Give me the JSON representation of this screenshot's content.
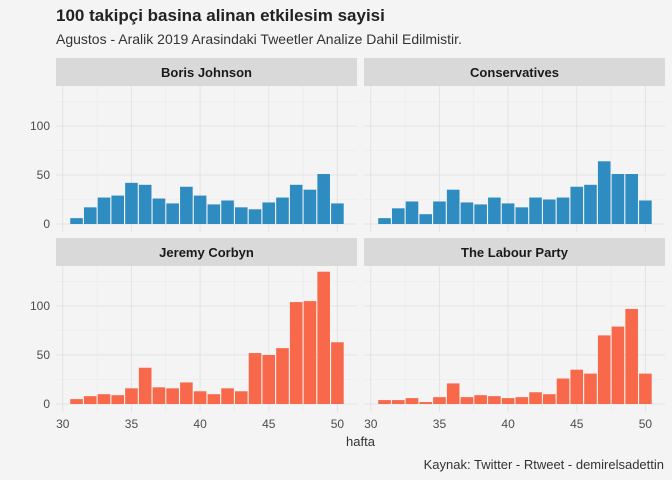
{
  "title": "100 takipçi basina alinan etkilesim sayisi",
  "subtitle": "Agustos - Aralik 2019 Arasindaki Tweetler Analize Dahil Edilmistir.",
  "caption": "Kaynak: Twitter - Rtweet - demirelsadettin",
  "colors": {
    "blue": "#2e8cc1",
    "red": "#f8684a"
  },
  "chart_data": {
    "type": "bar",
    "xlabel": "hafta",
    "ylabel": "",
    "xlim": [
      30,
      51
    ],
    "ylim": [
      0,
      140
    ],
    "x_ticks": [
      30,
      35,
      40,
      45,
      50
    ],
    "y_ticks": [
      0,
      50,
      100
    ],
    "grid": true,
    "panels": [
      {
        "name": "Boris Johnson",
        "color": "blue",
        "x": [
          31,
          32,
          33,
          34,
          35,
          36,
          37,
          38,
          39,
          40,
          41,
          42,
          43,
          44,
          45,
          46,
          47,
          48,
          49,
          50
        ],
        "values": [
          6,
          17,
          27,
          29,
          42,
          40,
          26,
          21,
          38,
          29,
          20,
          24,
          17,
          15,
          22,
          27,
          40,
          35,
          51,
          21
        ]
      },
      {
        "name": "Conservatives",
        "color": "blue",
        "x": [
          31,
          32,
          33,
          34,
          35,
          36,
          37,
          38,
          39,
          40,
          41,
          42,
          43,
          44,
          45,
          46,
          47,
          48,
          49,
          50
        ],
        "values": [
          6,
          16,
          23,
          10,
          23,
          35,
          22,
          20,
          27,
          21,
          17,
          27,
          25,
          27,
          38,
          40,
          64,
          51,
          51,
          24
        ]
      },
      {
        "name": "Jeremy Corbyn",
        "color": "red",
        "x": [
          31,
          32,
          33,
          34,
          35,
          36,
          37,
          38,
          39,
          40,
          41,
          42,
          43,
          44,
          45,
          46,
          47,
          48,
          49,
          50
        ],
        "values": [
          5,
          8,
          10,
          9,
          16,
          37,
          17,
          16,
          22,
          13,
          10,
          16,
          13,
          52,
          50,
          57,
          104,
          105,
          135,
          63
        ]
      },
      {
        "name": "The Labour Party",
        "color": "red",
        "x": [
          31,
          32,
          33,
          34,
          35,
          36,
          37,
          38,
          39,
          40,
          41,
          42,
          43,
          44,
          45,
          46,
          47,
          48,
          49,
          50
        ],
        "values": [
          4,
          4,
          6,
          2,
          7,
          21,
          7,
          9,
          8,
          6,
          7,
          12,
          10,
          26,
          35,
          31,
          70,
          79,
          97,
          31
        ]
      }
    ]
  }
}
